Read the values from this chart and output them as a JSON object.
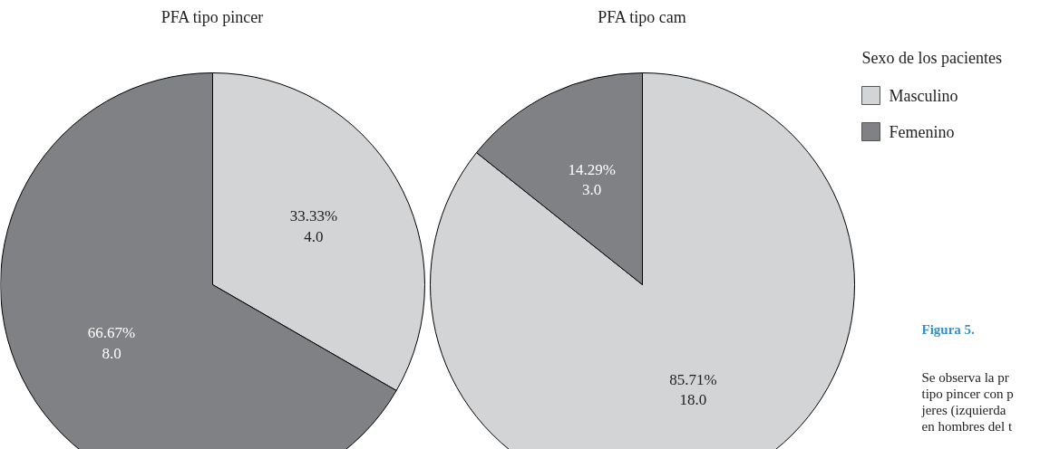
{
  "chart_data": [
    {
      "type": "pie",
      "title": "PFA tipo pincer",
      "categories": [
        "Masculino",
        "Femenino"
      ],
      "values": [
        4.0,
        8.0
      ],
      "colors": [
        "#d3d4d6",
        "#808184"
      ],
      "value_labels": [
        "33.33%\n4.0",
        "66.67%\n8.0"
      ],
      "legend": "right",
      "legend_title": "Sexo de los pacientes"
    },
    {
      "type": "pie",
      "title": "PFA tipo cam",
      "values": [
        18.0,
        3.0
      ],
      "colors": [
        "#d3d4d6",
        "#808184"
      ],
      "value_labels": [
        "85.71%\n18.0",
        "14.29%\n3.0"
      ],
      "annotations": [
        "Figura 5.",
        "Se observa la pr",
        "tipo pincer con p",
        "jeres (izquierda",
        "en hombres del t"
      ]
    }
  ]
}
